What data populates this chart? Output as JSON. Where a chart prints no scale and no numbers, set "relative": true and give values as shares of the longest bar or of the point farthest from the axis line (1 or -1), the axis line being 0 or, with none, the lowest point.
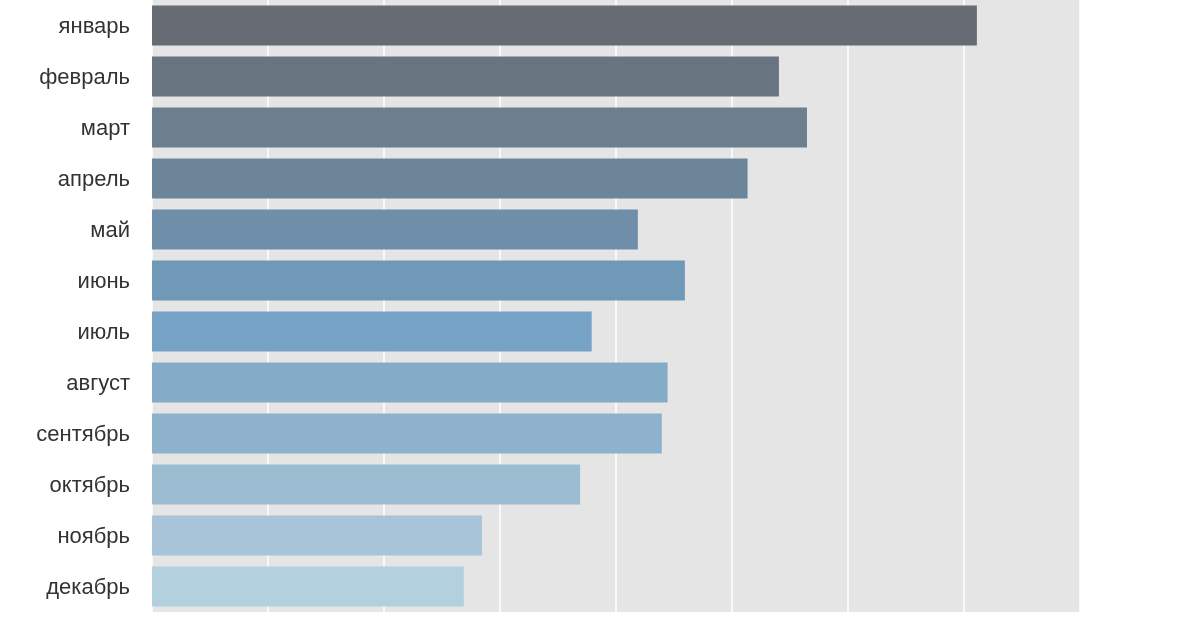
{
  "chart_data": {
    "type": "bar",
    "orientation": "horizontal",
    "relative": true,
    "grid": "x",
    "categories": [
      "январь",
      "февраль",
      "март",
      "апрель",
      "май",
      "июнь",
      "июль",
      "август",
      "сентябрь",
      "октябрь",
      "ноябрь",
      "декабрь"
    ],
    "values": [
      1,
      0.76,
      0.794,
      0.722,
      0.589,
      0.646,
      0.533,
      0.625,
      0.618,
      0.519,
      0.4,
      0.378
    ],
    "colors": [
      "#676b73",
      "#687580",
      "#6b7f8e",
      "#6c8599",
      "#6e8ea9",
      "#7099b8",
      "#76a2c6",
      "#84abc8",
      "#8eb2cc",
      "#9cbcd2",
      "#a8c4d8",
      "#b3d0de"
    ]
  }
}
